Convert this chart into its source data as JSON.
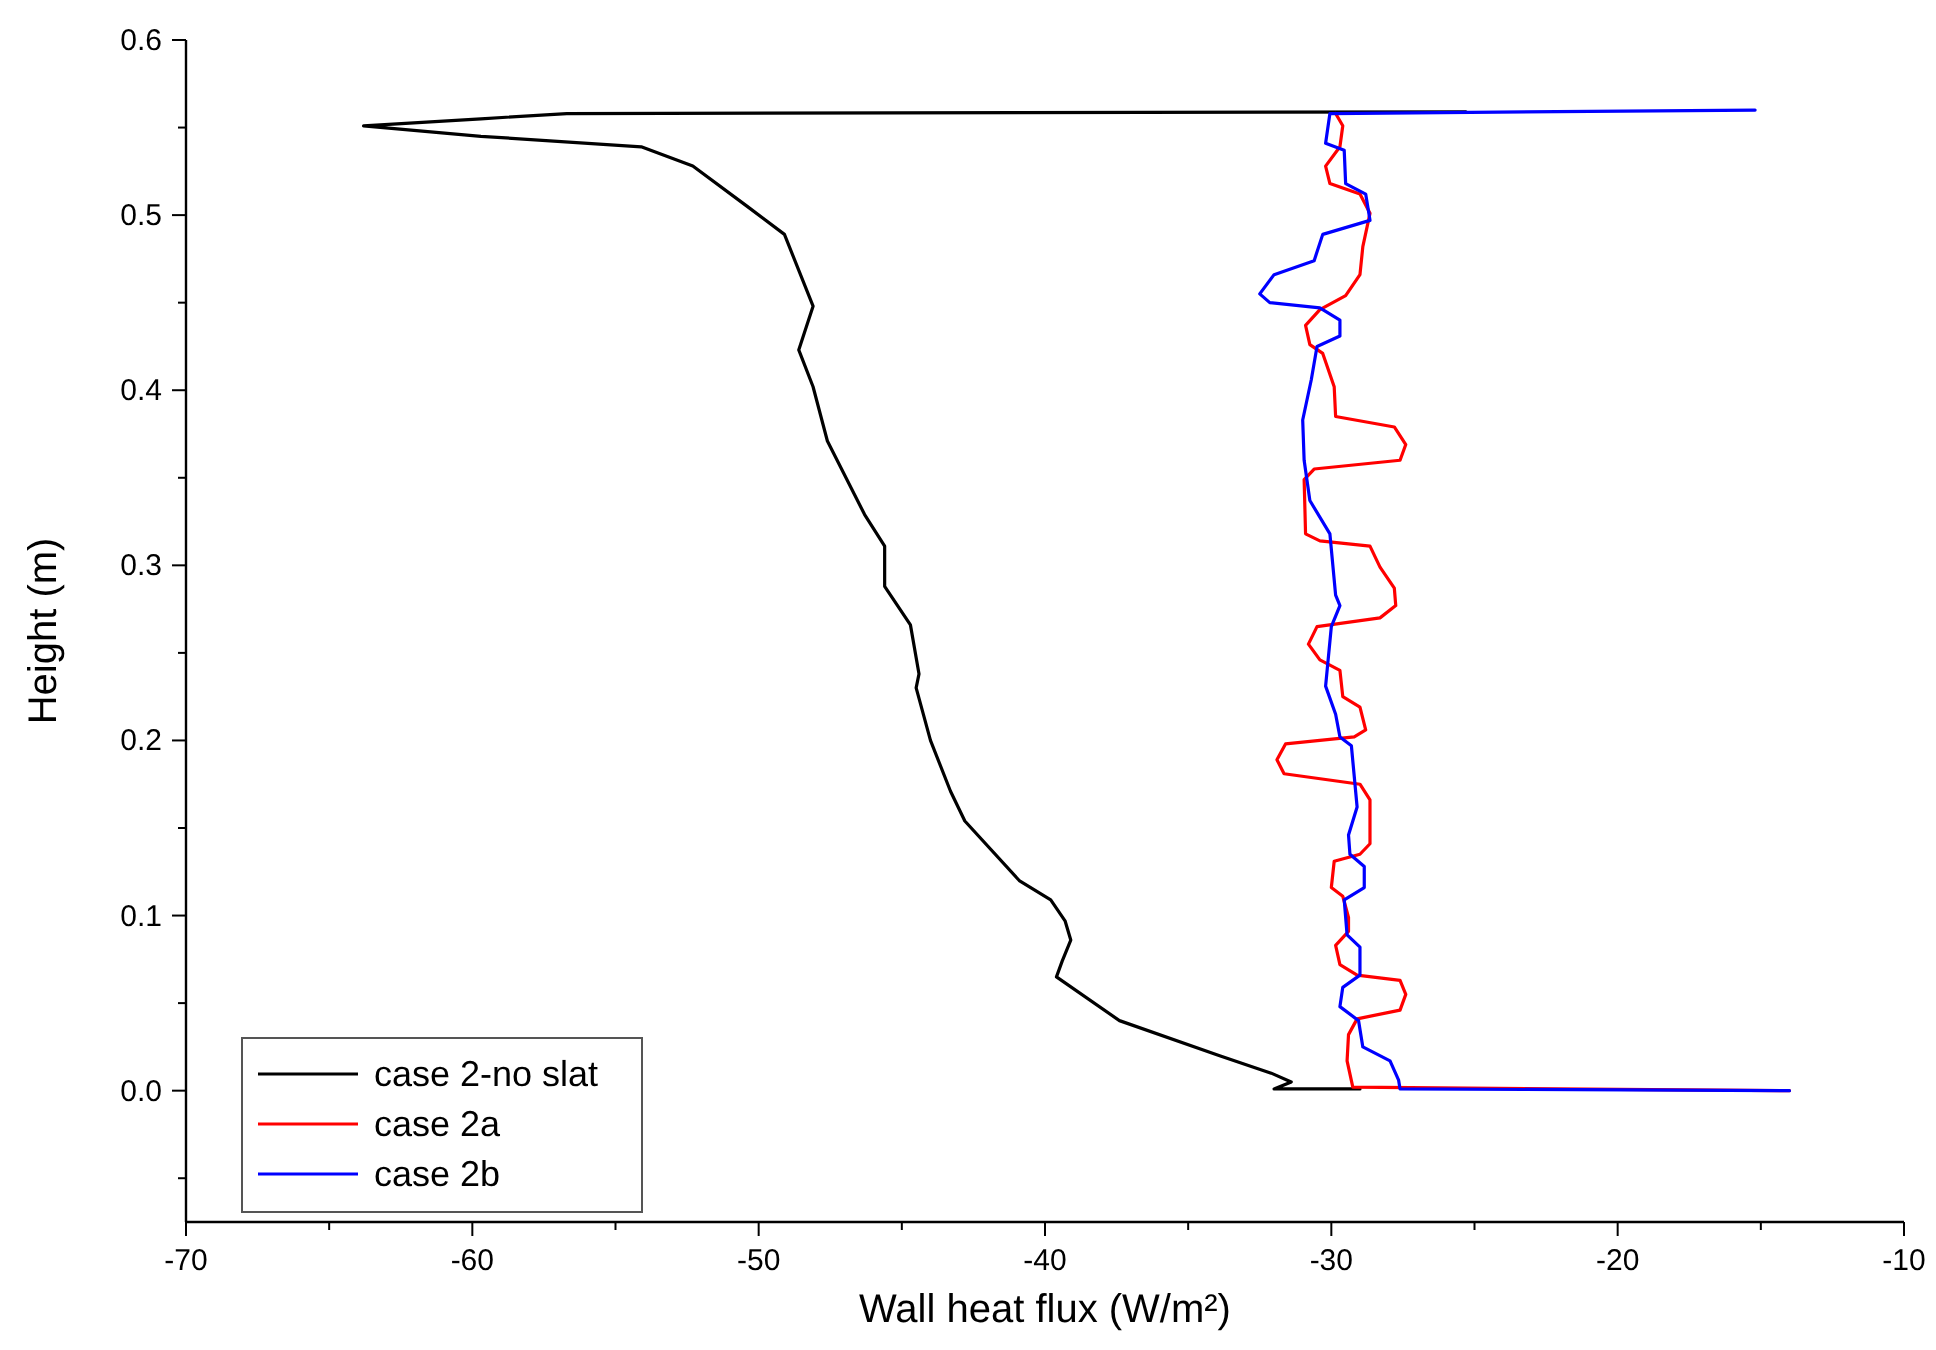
{
  "chart_data": {
    "type": "line",
    "xlabel": "Wall heat flux (W/m²)",
    "ylabel": "Height (m)",
    "xlim": [
      -70,
      -10
    ],
    "ylim": [
      -0.075,
      0.6
    ],
    "xticks": [
      -70,
      {
        "value": -65,
        "label": null
      },
      -60,
      {
        "value": -55,
        "label": null
      },
      -50,
      {
        "value": -45,
        "label": null
      },
      -40,
      {
        "value": -35,
        "label": null
      },
      -30,
      {
        "value": -25,
        "label": null
      },
      -20,
      {
        "value": -15,
        "label": null
      },
      -10
    ],
    "yticks": [
      {
        "value": -0.05,
        "label": null
      },
      {
        "value": 0,
        "label": "0.0"
      },
      {
        "value": 0.05,
        "label": null
      },
      {
        "value": 0.1,
        "label": "0.1"
      },
      {
        "value": 0.15,
        "label": null
      },
      {
        "value": 0.2,
        "label": "0.2"
      },
      {
        "value": 0.25,
        "label": null
      },
      {
        "value": 0.3,
        "label": "0.3"
      },
      {
        "value": 0.35,
        "label": null
      },
      {
        "value": 0.4,
        "label": "0.4"
      },
      {
        "value": 0.45,
        "label": null
      },
      {
        "value": 0.5,
        "label": "0.5"
      },
      {
        "value": 0.55,
        "label": null
      },
      {
        "value": 0.6,
        "label": "0.6"
      }
    ],
    "grid": false,
    "legend": "bottom left",
    "marker": "none",
    "line_style": "solid",
    "series": [
      {
        "name": "case 2-no slat",
        "color": "#000000",
        "x": [
          -29,
          -32.0,
          -31.4,
          -32.1,
          -33.9,
          -37.4,
          -39.6,
          -39.4,
          -39.1,
          -39.3,
          -39.8,
          -40.9,
          -42.8,
          -43.3,
          -44.0,
          -44.5,
          -44.4,
          -44.7,
          -45.6,
          -45.6,
          -46.3,
          -47.6,
          -48.1,
          -48.6,
          -48.1,
          -49.1,
          -50.4,
          -52.3,
          -54.1,
          -59.7,
          -63.8,
          -59.7,
          -56.7,
          -25.3
        ],
        "values": [
          0.001,
          0.001,
          0.005,
          0.01,
          0.02,
          0.04,
          0.065,
          0.074,
          0.086,
          0.097,
          0.109,
          0.12,
          0.154,
          0.171,
          0.2,
          0.23,
          0.238,
          0.266,
          0.288,
          0.311,
          0.329,
          0.371,
          0.402,
          0.423,
          0.448,
          0.489,
          0.505,
          0.528,
          0.539,
          0.545,
          0.551,
          0.555,
          0.558,
          0.559
        ]
      },
      {
        "name": "case 2a",
        "color": "#ff0000",
        "x": [
          -29.85,
          -29.6,
          -29.7,
          -30.2,
          -30.05,
          -29.0,
          -28.65,
          -28.9,
          -29.0,
          -29.5,
          -30.4,
          -30.9,
          -30.75,
          -30.3,
          -29.9,
          -29.85,
          -27.8,
          -27.4,
          -27.6,
          -30.6,
          -30.95,
          -30.9,
          -30.4,
          -28.65,
          -28.3,
          -27.8,
          -27.75,
          -28.3,
          -30.5,
          -30.8,
          -30.4,
          -29.7,
          -29.6,
          -29.0,
          -28.8,
          -29.2,
          -31.6,
          -31.9,
          -31.65,
          -29.0,
          -28.65,
          -28.65,
          -29.0,
          -29.9,
          -30.0,
          -29.6,
          -29.4,
          -29.4,
          -29.85,
          -29.7,
          -29.1,
          -27.6,
          -27.4,
          -27.6,
          -29.1,
          -29.4,
          -29.45,
          -29.25,
          -14.0
        ],
        "values": [
          0.558,
          0.551,
          0.539,
          0.528,
          0.518,
          0.512,
          0.501,
          0.482,
          0.466,
          0.454,
          0.446,
          0.437,
          0.426,
          0.421,
          0.402,
          0.385,
          0.379,
          0.369,
          0.36,
          0.355,
          0.349,
          0.318,
          0.314,
          0.311,
          0.299,
          0.287,
          0.277,
          0.27,
          0.265,
          0.255,
          0.246,
          0.24,
          0.225,
          0.219,
          0.206,
          0.202,
          0.198,
          0.189,
          0.181,
          0.175,
          0.166,
          0.141,
          0.135,
          0.131,
          0.116,
          0.111,
          0.099,
          0.091,
          0.083,
          0.072,
          0.066,
          0.063,
          0.055,
          0.046,
          0.041,
          0.032,
          0.017,
          0.002,
          0.0
        ]
      },
      {
        "name": "case 2b",
        "color": "#0000ff",
        "x": [
          -15.2,
          -30.05,
          -30.2,
          -29.55,
          -29.5,
          -28.8,
          -28.65,
          -30.3,
          -30.6,
          -32.0,
          -32.5,
          -32.15,
          -30.4,
          -29.7,
          -29.7,
          -30.5,
          -30.7,
          -31.0,
          -30.95,
          -30.75,
          -30.05,
          -29.85,
          -29.7,
          -30.0,
          -30.2,
          -29.85,
          -29.7,
          -29.3,
          -29.1,
          -29.4,
          -29.35,
          -28.85,
          -28.85,
          -29.55,
          -29.45,
          -29.0,
          -29.0,
          -29.6,
          -29.7,
          -29.05,
          -28.9,
          -27.95,
          -27.65,
          -27.6,
          -14.0
        ],
        "values": [
          0.56,
          0.558,
          0.541,
          0.537,
          0.518,
          0.512,
          0.497,
          0.489,
          0.474,
          0.466,
          0.455,
          0.45,
          0.447,
          0.44,
          0.431,
          0.425,
          0.406,
          0.383,
          0.36,
          0.337,
          0.318,
          0.283,
          0.277,
          0.265,
          0.231,
          0.215,
          0.202,
          0.197,
          0.162,
          0.146,
          0.135,
          0.128,
          0.116,
          0.109,
          0.089,
          0.082,
          0.066,
          0.059,
          0.048,
          0.04,
          0.025,
          0.017,
          0.006,
          0.001,
          0.0
        ]
      }
    ]
  }
}
